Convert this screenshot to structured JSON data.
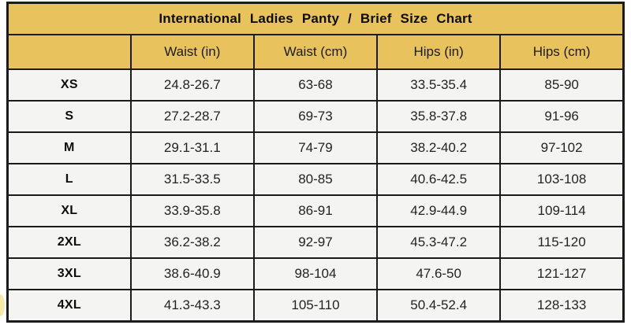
{
  "chart_data": {
    "type": "table",
    "title": "International Ladies Panty / Brief Size Chart",
    "columns": [
      "",
      "Waist (in)",
      "Waist (cm)",
      "Hips (in)",
      "Hips (cm)"
    ],
    "rows": [
      [
        "XS",
        "24.8-26.7",
        "63-68",
        "33.5-35.4",
        "85-90"
      ],
      [
        "S",
        "27.2-28.7",
        "69-73",
        "35.8-37.8",
        "91-96"
      ],
      [
        "M",
        "29.1-31.1",
        "74-79",
        "38.2-40.2",
        "97-102"
      ],
      [
        "L",
        "31.5-33.5",
        "80-85",
        "40.6-42.5",
        "103-108"
      ],
      [
        "XL",
        "33.9-35.8",
        "86-91",
        "42.9-44.9",
        "109-114"
      ],
      [
        "2XL",
        "36.2-38.2",
        "92-97",
        "45.3-47.2",
        "115-120"
      ],
      [
        "3XL",
        "38.6-40.9",
        "98-104",
        "47.6-50",
        "121-127"
      ],
      [
        "4XL",
        "41.3-43.3",
        "105-110",
        "50.4-52.4",
        "128-133"
      ]
    ],
    "layout": {
      "title_bg": "#e8c25c",
      "header_bg": "#e8c25c",
      "row_bg": "#f4f4f3",
      "border_color": "#1b1b1b",
      "grid": "on"
    }
  }
}
